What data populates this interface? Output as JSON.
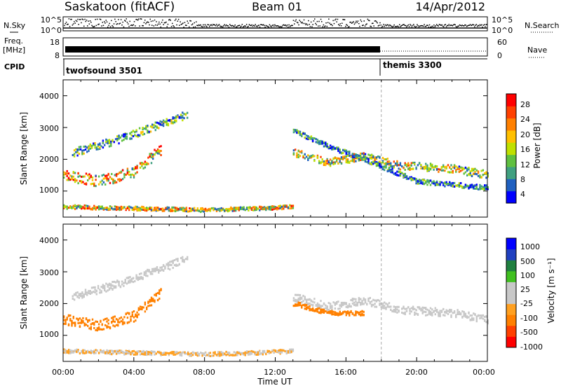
{
  "header": {
    "station": "Saskatoon (fitACF)",
    "beam": "Beam 01",
    "date": "14/Apr/2012"
  },
  "top_strip": {
    "nsky_label": "N.Sky",
    "nsearch_label": "N.Search",
    "freq_label": "Freq.",
    "freq_unit": "[MHz]",
    "nave_label": "Nave",
    "cpid_label": "CPID",
    "left_ticks_top": [
      "10^5",
      "10^0"
    ],
    "right_ticks_top": [
      "10^5",
      "10^0"
    ],
    "left_ticks_freq": [
      "18",
      "8"
    ],
    "right_ticks_nave": [
      "60",
      "0"
    ],
    "cpid_modes": [
      {
        "name": "twofsound 3501",
        "start_hour": 0,
        "end_hour": 18
      },
      {
        "name": "themis 3300",
        "start_hour": 18,
        "end_hour": 24
      }
    ]
  },
  "colors": {
    "power_scale": [
      "#0000ff",
      "#2060c0",
      "#40a080",
      "#60c040",
      "#c0e000",
      "#ffc000",
      "#ff8000",
      "#ff4000",
      "#ff0000"
    ],
    "velocity_scale": [
      "#ff0000",
      "#ff4000",
      "#ff8000",
      "#ffa020",
      "#c8c8c8",
      "#c8c8c8",
      "#40c020",
      "#208040",
      "#2040c0",
      "#0000ff"
    ]
  },
  "chart_data": [
    {
      "type": "heatmap",
      "title": "",
      "xlabel": "Time UT",
      "ylabel": "Slant Range [km]",
      "xlim": [
        "00:00",
        "24:00"
      ],
      "ylim": [
        180,
        4500
      ],
      "xticks": [
        "00:00",
        "04:00",
        "08:00",
        "12:00",
        "16:00",
        "20:00",
        "00:00"
      ],
      "yticks": [
        "1000",
        "2000",
        "3000",
        "4000"
      ],
      "colorbar": {
        "label": "Power [dB]",
        "ticks": [
          "4",
          "8",
          "12",
          "16",
          "20",
          "24",
          "28"
        ],
        "range": [
          0,
          30
        ]
      },
      "bands": [
        {
          "hours": [
            0,
            2,
            4,
            5.5
          ],
          "ranges": [
            1500,
            1300,
            1600,
            2300
          ],
          "width": 350,
          "value": 18
        },
        {
          "hours": [
            0.5,
            3,
            5.5,
            7
          ],
          "ranges": [
            2200,
            2600,
            3100,
            3400
          ],
          "width": 250,
          "value": 10
        },
        {
          "hours": [
            13,
            15,
            17,
            19,
            22,
            24
          ],
          "ranges": [
            2200,
            1900,
            2100,
            1800,
            1700,
            1500
          ],
          "width": 250,
          "value": 14
        },
        {
          "hours": [
            13,
            15,
            17,
            20,
            24
          ],
          "ranges": [
            2900,
            2400,
            2000,
            1300,
            1100
          ],
          "width": 150,
          "value": 8
        },
        {
          "hours": [
            0,
            4,
            8,
            11,
            13
          ],
          "ranges": [
            500,
            450,
            400,
            450,
            500
          ],
          "width": 120,
          "value": 16
        }
      ]
    },
    {
      "type": "heatmap",
      "title": "",
      "xlabel": "Time UT",
      "ylabel": "Slant Range [km]",
      "xlim": [
        "00:00",
        "24:00"
      ],
      "ylim": [
        180,
        4500
      ],
      "xticks": [
        "00:00",
        "04:00",
        "08:00",
        "12:00",
        "16:00",
        "20:00",
        "00:00"
      ],
      "yticks": [
        "1000",
        "2000",
        "3000",
        "4000"
      ],
      "colorbar": {
        "label": "Velocity [m s⁻¹]",
        "ticks": [
          "1000",
          "500",
          "100",
          "25",
          "-25",
          "-100",
          "-500",
          "-1000"
        ],
        "range": [
          -1000,
          1000
        ]
      },
      "bands": [
        {
          "hours": [
            0,
            2,
            4,
            5.5
          ],
          "ranges": [
            1500,
            1300,
            1600,
            2300
          ],
          "width": 350,
          "value": -200
        },
        {
          "hours": [
            0.5,
            3,
            5.5,
            7
          ],
          "ranges": [
            2200,
            2600,
            3100,
            3400
          ],
          "width": 250,
          "value": 0
        },
        {
          "hours": [
            13,
            15,
            17,
            19,
            22,
            24
          ],
          "ranges": [
            2200,
            1900,
            2100,
            1800,
            1700,
            1500
          ],
          "width": 250,
          "value": 0
        },
        {
          "hours": [
            13,
            15,
            17
          ],
          "ranges": [
            2000,
            1700,
            1700
          ],
          "width": 150,
          "value": -200
        },
        {
          "hours": [
            0,
            4,
            8,
            11,
            13
          ],
          "ranges": [
            500,
            450,
            400,
            450,
            500
          ],
          "width": 120,
          "value": -60
        }
      ]
    }
  ]
}
